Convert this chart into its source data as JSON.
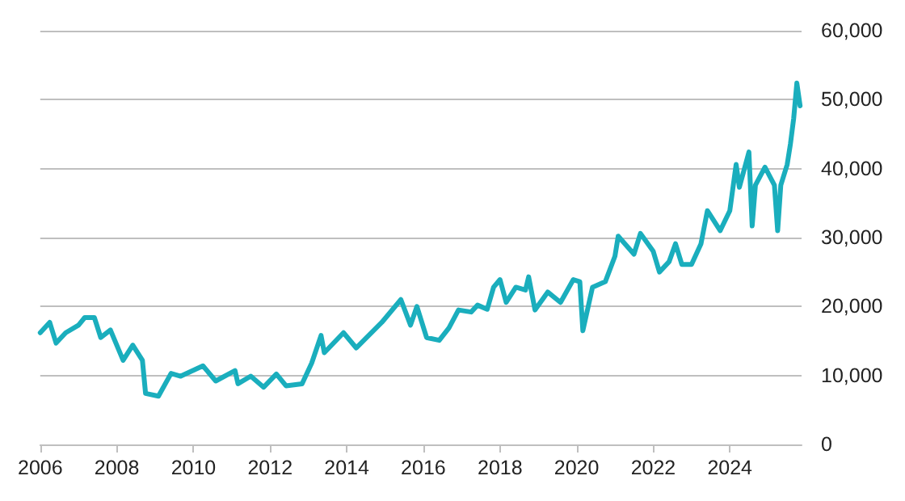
{
  "chart_data": {
    "type": "line",
    "xlim": [
      "2006-01-01",
      "2025-11-15"
    ],
    "xticks": [
      "2006",
      "2008",
      "2010",
      "2012",
      "2014",
      "2016",
      "2018",
      "2020",
      "2022",
      "2024"
    ],
    "ylim": [
      0,
      60000
    ],
    "yticks": [
      {
        "value": 0,
        "label": "0"
      },
      {
        "value": 10000,
        "label": "10,000"
      },
      {
        "value": 20000,
        "label": "20,000"
      },
      {
        "value": 30000,
        "label": "30,000"
      },
      {
        "value": 40000,
        "label": "40,000"
      },
      {
        "value": 50000,
        "label": "50,000"
      },
      {
        "value": 60000,
        "label": "60,000"
      }
    ],
    "grid": "y",
    "marker": "none",
    "line_style": "solid",
    "x": [
      "2006-01",
      "2006-04",
      "2006-06",
      "2006-09",
      "2007-01",
      "2007-03",
      "2007-06",
      "2007-08",
      "2007-11",
      "2008-03",
      "2008-06",
      "2008-09",
      "2008-10",
      "2009-02",
      "2009-06",
      "2009-09",
      "2010-04",
      "2010-08",
      "2011-02",
      "2011-03",
      "2011-07",
      "2011-11",
      "2012-03",
      "2012-06",
      "2012-11",
      "2013-02",
      "2013-05",
      "2013-06",
      "2013-12",
      "2014-04",
      "2014-12",
      "2015-06",
      "2015-09",
      "2015-11",
      "2016-02",
      "2016-06",
      "2016-09",
      "2016-12",
      "2017-04",
      "2017-06",
      "2017-09",
      "2017-11",
      "2018-01",
      "2018-03",
      "2018-06",
      "2018-09",
      "2018-10",
      "2018-12",
      "2019-04",
      "2019-08",
      "2019-12",
      "2020-02",
      "2020-03",
      "2020-06",
      "2020-10",
      "2021-01",
      "2021-02",
      "2021-07",
      "2021-09",
      "2022-01",
      "2022-03",
      "2022-06",
      "2022-08",
      "2022-10",
      "2023-01",
      "2023-04",
      "2023-06",
      "2023-10",
      "2024-01",
      "2024-03",
      "2024-04",
      "2024-07",
      "2024-08",
      "2024-09",
      "2024-12",
      "2025-03",
      "2025-04",
      "2025-05",
      "2025-07",
      "2025-08",
      "2025-09",
      "2025-10",
      "2025-11"
    ],
    "series": [
      {
        "color": "#1aaebd",
        "values": [
          16200,
          17700,
          14700,
          16200,
          17300,
          18400,
          18400,
          15500,
          16600,
          12200,
          14400,
          12200,
          7400,
          7000,
          10300,
          9900,
          11400,
          9200,
          10700,
          8800,
          9900,
          8300,
          10200,
          8500,
          8800,
          11800,
          15800,
          13300,
          16200,
          14000,
          17700,
          21000,
          17300,
          20000,
          15500,
          15100,
          16900,
          19500,
          19200,
          20200,
          19600,
          22800,
          23900,
          20600,
          22800,
          22400,
          24300,
          19500,
          22100,
          20600,
          23900,
          23600,
          16500,
          22800,
          23600,
          27300,
          30200,
          27600,
          30600,
          28000,
          25000,
          26500,
          29100,
          26100,
          26100,
          29100,
          33900,
          31000,
          33900,
          40600,
          37300,
          42400,
          31700,
          37600,
          40200,
          37600,
          31000,
          37600,
          40600,
          43600,
          47300,
          52400,
          49100
        ]
      }
    ]
  }
}
